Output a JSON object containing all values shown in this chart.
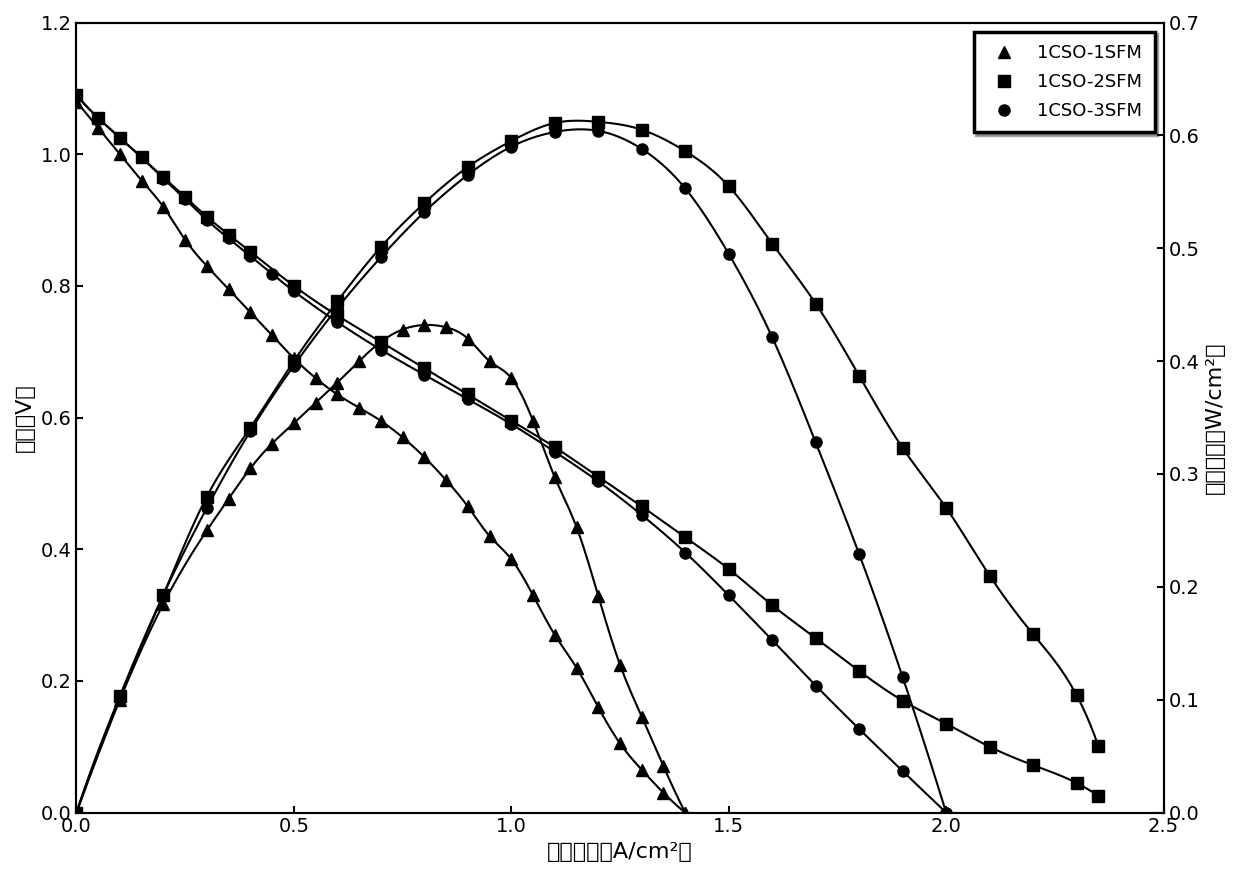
{
  "xlabel": "电流密度（A/cm²）",
  "ylabel_left": "电压（V）",
  "ylabel_right": "功率密度（W/cm²）",
  "xlim": [
    0.0,
    2.5
  ],
  "ylim_left": [
    0.0,
    1.2
  ],
  "ylim_right": [
    0.0,
    0.7
  ],
  "xticks": [
    0.0,
    0.5,
    1.0,
    1.5,
    2.0,
    2.5
  ],
  "yticks_left": [
    0.0,
    0.2,
    0.4,
    0.6,
    0.8,
    1.0,
    1.2
  ],
  "yticks_right": [
    0.0,
    0.1,
    0.2,
    0.3,
    0.4,
    0.5,
    0.6,
    0.7
  ],
  "series": [
    {
      "label": "1CSO-1SFM",
      "marker": "^",
      "voltage_x": [
        0.0,
        0.05,
        0.1,
        0.15,
        0.2,
        0.25,
        0.3,
        0.35,
        0.4,
        0.45,
        0.5,
        0.55,
        0.6,
        0.65,
        0.7,
        0.75,
        0.8,
        0.85,
        0.9,
        0.95,
        1.0,
        1.05,
        1.1,
        1.15,
        1.2,
        1.25,
        1.3,
        1.35,
        1.4
      ],
      "voltage_y": [
        1.08,
        1.04,
        1.0,
        0.96,
        0.92,
        0.87,
        0.83,
        0.795,
        0.76,
        0.725,
        0.69,
        0.66,
        0.635,
        0.615,
        0.595,
        0.57,
        0.54,
        0.505,
        0.465,
        0.42,
        0.385,
        0.33,
        0.27,
        0.22,
        0.16,
        0.105,
        0.065,
        0.03,
        0.0
      ],
      "power_x": [
        0.0,
        0.1,
        0.2,
        0.3,
        0.35,
        0.4,
        0.45,
        0.5,
        0.55,
        0.6,
        0.65,
        0.7,
        0.75,
        0.8,
        0.85,
        0.9,
        0.95,
        1.0,
        1.05,
        1.1,
        1.15,
        1.2,
        1.25,
        1.3,
        1.35,
        1.4
      ],
      "power_y": [
        0.0,
        0.1,
        0.185,
        0.25,
        0.278,
        0.305,
        0.327,
        0.345,
        0.363,
        0.381,
        0.4,
        0.417,
        0.428,
        0.432,
        0.43,
        0.42,
        0.4,
        0.385,
        0.347,
        0.297,
        0.253,
        0.192,
        0.131,
        0.085,
        0.041,
        0.0
      ]
    },
    {
      "label": "1CSO-2SFM",
      "marker": "s",
      "voltage_x": [
        0.0,
        0.05,
        0.1,
        0.15,
        0.2,
        0.25,
        0.3,
        0.35,
        0.4,
        0.5,
        0.6,
        0.7,
        0.8,
        0.9,
        1.0,
        1.1,
        1.2,
        1.3,
        1.4,
        1.5,
        1.6,
        1.7,
        1.8,
        1.9,
        2.0,
        2.1,
        2.2,
        2.3,
        2.35
      ],
      "voltage_y": [
        1.09,
        1.055,
        1.025,
        0.995,
        0.965,
        0.935,
        0.905,
        0.878,
        0.852,
        0.8,
        0.755,
        0.715,
        0.675,
        0.635,
        0.595,
        0.555,
        0.51,
        0.465,
        0.418,
        0.37,
        0.315,
        0.265,
        0.215,
        0.17,
        0.135,
        0.1,
        0.072,
        0.045,
        0.025
      ],
      "power_x": [
        0.0,
        0.1,
        0.2,
        0.3,
        0.4,
        0.5,
        0.6,
        0.7,
        0.8,
        0.9,
        1.0,
        1.1,
        1.2,
        1.3,
        1.4,
        1.5,
        1.6,
        1.7,
        1.8,
        1.9,
        2.0,
        2.1,
        2.2,
        2.3,
        2.35
      ],
      "power_y": [
        0.0,
        0.103,
        0.193,
        0.28,
        0.341,
        0.4,
        0.453,
        0.501,
        0.54,
        0.572,
        0.595,
        0.611,
        0.612,
        0.605,
        0.586,
        0.555,
        0.504,
        0.451,
        0.387,
        0.323,
        0.27,
        0.21,
        0.158,
        0.104,
        0.059
      ]
    },
    {
      "label": "1CSO-3SFM",
      "marker": "o",
      "voltage_x": [
        0.0,
        0.05,
        0.1,
        0.15,
        0.2,
        0.25,
        0.3,
        0.35,
        0.4,
        0.45,
        0.5,
        0.6,
        0.7,
        0.8,
        0.9,
        1.0,
        1.1,
        1.2,
        1.3,
        1.4,
        1.5,
        1.6,
        1.7,
        1.8,
        1.9,
        2.0
      ],
      "voltage_y": [
        1.09,
        1.055,
        1.025,
        0.995,
        0.963,
        0.932,
        0.9,
        0.872,
        0.845,
        0.818,
        0.792,
        0.745,
        0.703,
        0.665,
        0.628,
        0.59,
        0.548,
        0.503,
        0.452,
        0.395,
        0.33,
        0.262,
        0.193,
        0.127,
        0.063,
        0.0
      ],
      "power_x": [
        0.0,
        0.1,
        0.2,
        0.3,
        0.4,
        0.5,
        0.6,
        0.7,
        0.8,
        0.9,
        1.0,
        1.1,
        1.2,
        1.3,
        1.4,
        1.5,
        1.6,
        1.7,
        1.8,
        1.9,
        2.0
      ],
      "power_y": [
        0.0,
        0.103,
        0.193,
        0.27,
        0.338,
        0.396,
        0.447,
        0.492,
        0.532,
        0.565,
        0.59,
        0.603,
        0.604,
        0.588,
        0.553,
        0.495,
        0.421,
        0.328,
        0.229,
        0.12,
        0.0
      ]
    }
  ],
  "line_color": "black",
  "markersize": 8,
  "linewidth": 1.5,
  "legend_fontsize": 13,
  "axis_fontsize": 16,
  "tick_fontsize": 14
}
